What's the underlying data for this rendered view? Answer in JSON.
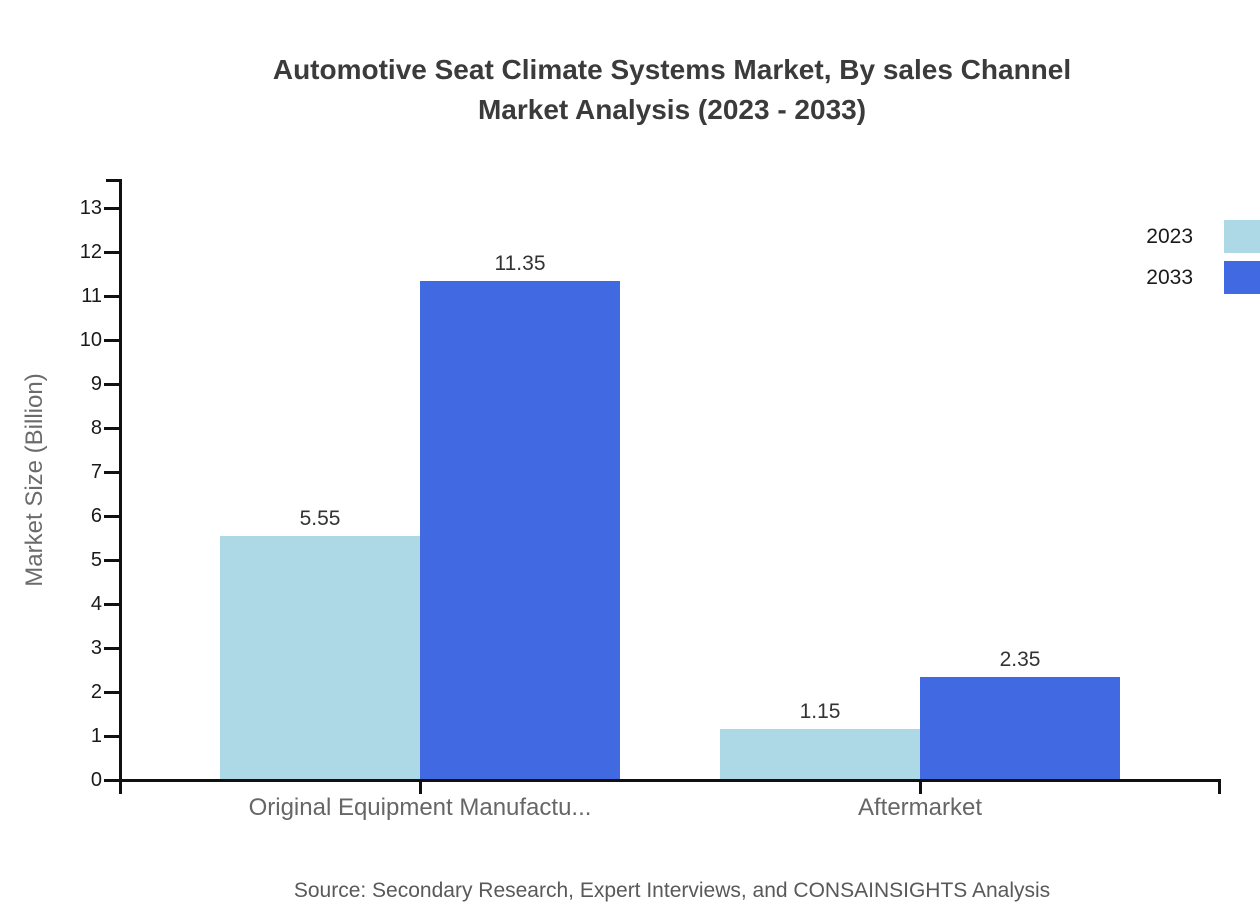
{
  "title": {
    "line1": "Automotive Seat Climate Systems Market, By sales Channel",
    "line2": "Market Analysis (2023 - 2033)"
  },
  "source": "Source: Secondary Research, Expert Interviews, and CONSAINSIGHTS Analysis",
  "colors": {
    "series_2023": "#ADD8E6",
    "series_2033": "#4169E1",
    "axis": "#111111"
  },
  "chart_data": {
    "type": "bar",
    "title": "Automotive Seat Climate Systems Market, By sales Channel Market Analysis (2023 - 2033)",
    "categories": [
      "Original Equipment Manufactu...",
      "Aftermarket"
    ],
    "series": [
      {
        "name": "2023",
        "color": "#ADD8E6",
        "values": [
          5.55,
          1.15
        ]
      },
      {
        "name": "2033",
        "color": "#4169E1",
        "values": [
          11.35,
          2.35
        ]
      }
    ],
    "value_labels": [
      [
        "5.55",
        "1.15"
      ],
      [
        "11.35",
        "2.35"
      ]
    ],
    "xlabel": "",
    "ylabel": "Market Size (Billion)",
    "ylim": [
      0,
      13
    ],
    "ytick_step": 1,
    "grid": false,
    "legend_position": "top-right"
  }
}
